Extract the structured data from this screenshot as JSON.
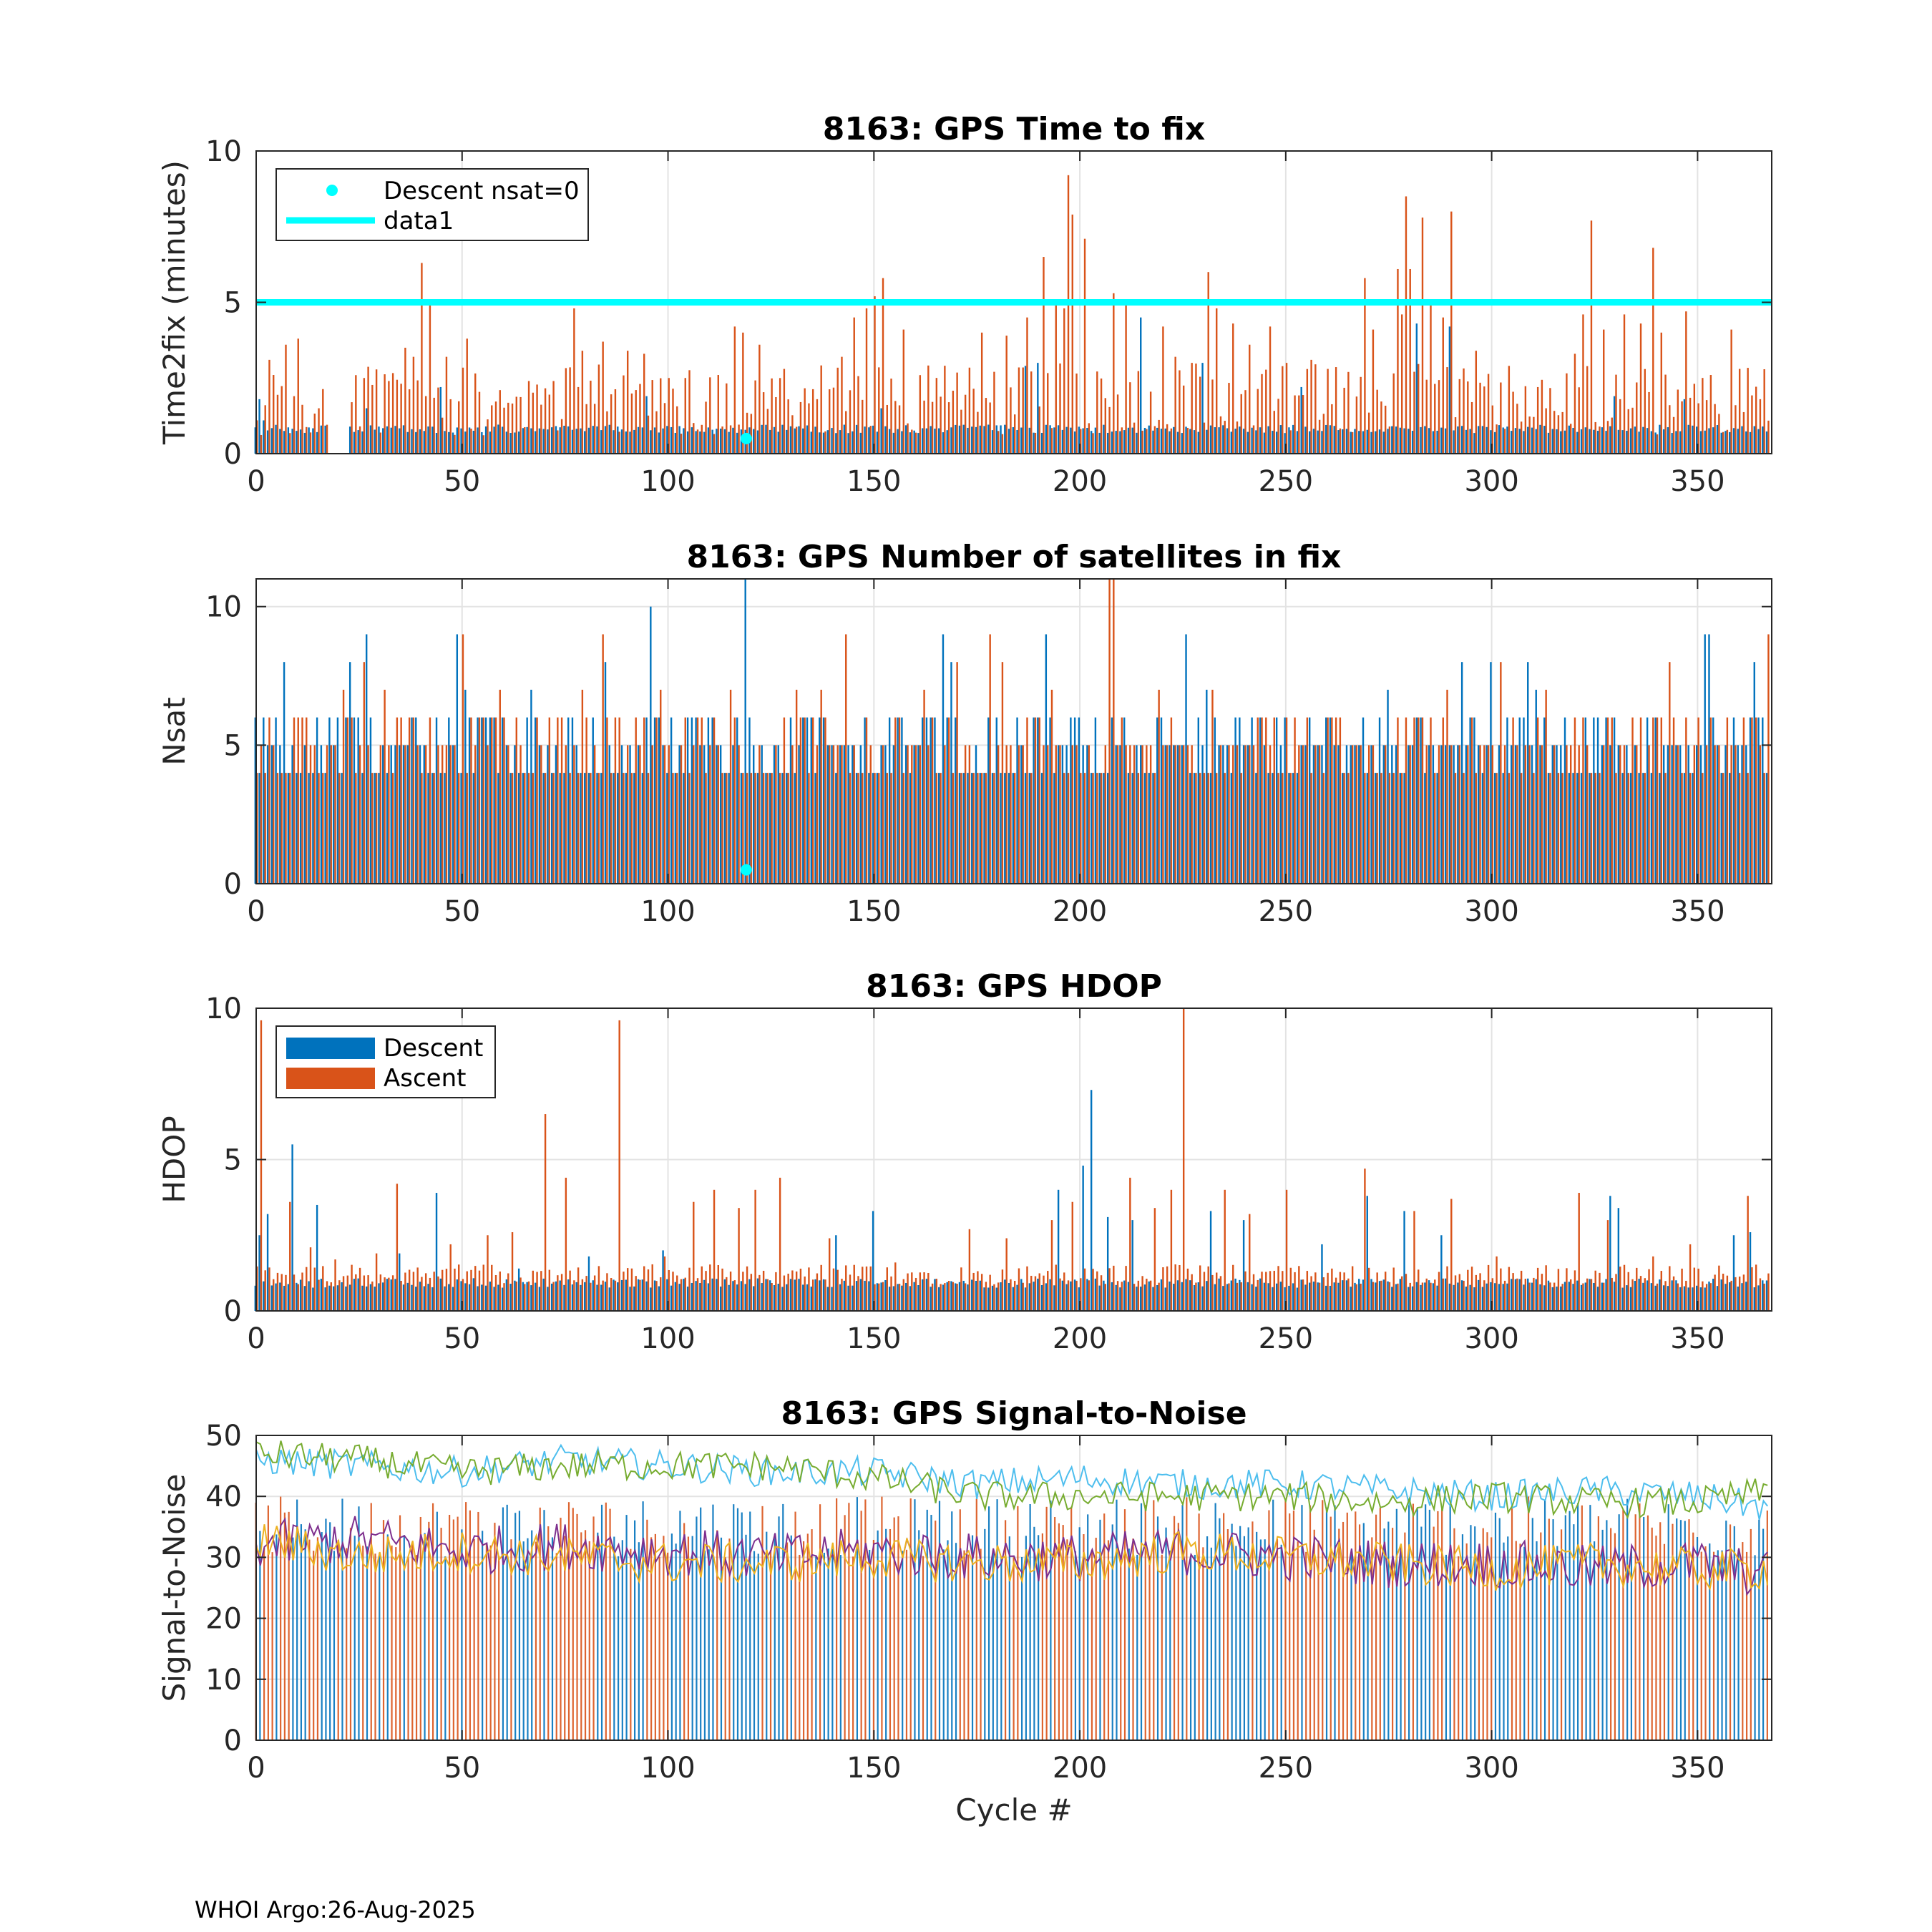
{
  "footer": "WHOI Argo:26-Aug-2025",
  "colors": {
    "descent": "#0072BD",
    "ascent": "#D95319",
    "marker": "#00FFFF",
    "snr": [
      "#4DBEEE",
      "#77AC30",
      "#7E2F8E",
      "#EDB120",
      "#0072BD",
      "#D95319"
    ]
  },
  "chart_data": [
    {
      "type": "bar",
      "title": "8163: GPS Time to fix",
      "xlabel": "",
      "ylabel": "Time2fix (minutes)",
      "xlim": [
        0,
        368
      ],
      "ylim": [
        0,
        10
      ],
      "xticks": [
        "0",
        "50",
        "100",
        "150",
        "200",
        "250",
        "300",
        "350"
      ],
      "yticks": [
        "0",
        "5",
        "10"
      ],
      "legend": {
        "placement": "top-left",
        "entries": [
          "Descent nsat=0",
          "data1"
        ]
      },
      "hline": {
        "name": "data1",
        "y": 5
      },
      "markers": [
        {
          "name": "Descent nsat=0",
          "x": 119,
          "y": 0.5
        }
      ],
      "descent_baseline": 0.8,
      "ascent_baseline": 1.5,
      "descent_peaks": [
        [
          1,
          1.8
        ],
        [
          2,
          1.1
        ],
        [
          27,
          1.5
        ],
        [
          45,
          2.2
        ],
        [
          95,
          1.9
        ],
        [
          152,
          1.5
        ],
        [
          187,
          2.9
        ],
        [
          190,
          3.0
        ],
        [
          215,
          4.5
        ],
        [
          230,
          3.0
        ],
        [
          254,
          2.2
        ],
        [
          282,
          4.3
        ],
        [
          290,
          4.2
        ],
        [
          330,
          1.9
        ],
        [
          347,
          1.8
        ]
      ],
      "ascent_peaks": [
        [
          2,
          1.6
        ],
        [
          3,
          3.1
        ],
        [
          4,
          2.6
        ],
        [
          7,
          3.6
        ],
        [
          9,
          1.9
        ],
        [
          10,
          3.8
        ],
        [
          15,
          1.5
        ],
        [
          23,
          1.7
        ],
        [
          26,
          2.5
        ],
        [
          32,
          2.4
        ],
        [
          36,
          3.5
        ],
        [
          38,
          3.2
        ],
        [
          40,
          6.3
        ],
        [
          42,
          4.9
        ],
        [
          46,
          3.2
        ],
        [
          51,
          3.8
        ],
        [
          59,
          2.1
        ],
        [
          66,
          2.4
        ],
        [
          72,
          2.4
        ],
        [
          77,
          4.8
        ],
        [
          79,
          3.4
        ],
        [
          84,
          3.7
        ],
        [
          90,
          3.4
        ],
        [
          94,
          3.3
        ],
        [
          100,
          2.5
        ],
        [
          104,
          2.5
        ],
        [
          112,
          2.6
        ],
        [
          116,
          4.2
        ],
        [
          118,
          4.0
        ],
        [
          122,
          3.6
        ],
        [
          128,
          2.8
        ],
        [
          136,
          1.8
        ],
        [
          142,
          3.2
        ],
        [
          145,
          4.5
        ],
        [
          148,
          4.8
        ],
        [
          150,
          5.2
        ],
        [
          152,
          5.8
        ],
        [
          157,
          4.1
        ],
        [
          168,
          1.7
        ],
        [
          176,
          4.0
        ],
        [
          182,
          3.9
        ],
        [
          187,
          4.5
        ],
        [
          191,
          6.5
        ],
        [
          194,
          5.0
        ],
        [
          196,
          4.8
        ],
        [
          197,
          9.2
        ],
        [
          198,
          7.9
        ],
        [
          201,
          7.1
        ],
        [
          208,
          5.3
        ],
        [
          211,
          4.9
        ],
        [
          220,
          4.2
        ],
        [
          223,
          3.2
        ],
        [
          227,
          3.0
        ],
        [
          231,
          6.0
        ],
        [
          233,
          4.8
        ],
        [
          237,
          4.3
        ],
        [
          241,
          3.6
        ],
        [
          246,
          4.2
        ],
        [
          250,
          3.0
        ],
        [
          256,
          3.1
        ],
        [
          260,
          2.8
        ],
        [
          265,
          2.7
        ],
        [
          269,
          5.8
        ],
        [
          271,
          4.1
        ],
        [
          277,
          6.1
        ],
        [
          278,
          4.6
        ],
        [
          279,
          8.5
        ],
        [
          280,
          6.1
        ],
        [
          283,
          7.8
        ],
        [
          285,
          5.0
        ],
        [
          288,
          4.5
        ],
        [
          290,
          8.0
        ],
        [
          296,
          3.4
        ],
        [
          304,
          2.9
        ],
        [
          311,
          2.2
        ],
        [
          320,
          3.3
        ],
        [
          322,
          4.6
        ],
        [
          324,
          7.7
        ],
        [
          327,
          4.1
        ],
        [
          332,
          4.6
        ],
        [
          336,
          4.3
        ],
        [
          339,
          6.8
        ],
        [
          341,
          4.0
        ],
        [
          347,
          4.7
        ],
        [
          353,
          2.6
        ],
        [
          358,
          4.1
        ],
        [
          365,
          1.8
        ]
      ]
    },
    {
      "type": "bar",
      "title": "8163: GPS Number of satellites in fix",
      "xlabel": "",
      "ylabel": "Nsat",
      "xlim": [
        0,
        368
      ],
      "ylim": [
        0,
        11
      ],
      "xticks": [
        "0",
        "50",
        "100",
        "150",
        "200",
        "250",
        "300",
        "350"
      ],
      "yticks": [
        "0",
        "5",
        "10"
      ],
      "markers": [
        {
          "name": "Descent nsat=0",
          "x": 119,
          "y": 0.5
        }
      ],
      "descent_baseline": 5,
      "ascent_baseline": 4,
      "descent_peaks": [
        [
          0,
          6
        ],
        [
          7,
          8
        ],
        [
          23,
          8
        ],
        [
          27,
          9
        ],
        [
          49,
          9
        ],
        [
          51,
          7
        ],
        [
          67,
          7
        ],
        [
          85,
          8
        ],
        [
          96,
          10
        ],
        [
          119,
          11
        ],
        [
          167,
          9
        ],
        [
          169,
          8
        ],
        [
          192,
          9
        ],
        [
          226,
          9
        ],
        [
          231,
          7
        ],
        [
          275,
          7
        ],
        [
          293,
          8
        ],
        [
          300,
          8
        ],
        [
          309,
          8
        ],
        [
          311,
          7
        ],
        [
          352,
          9
        ],
        [
          353,
          9
        ],
        [
          364,
          8
        ]
      ],
      "ascent_peaks": [
        [
          3,
          6
        ],
        [
          21,
          7
        ],
        [
          26,
          8
        ],
        [
          31,
          7
        ],
        [
          38,
          6
        ],
        [
          50,
          9
        ],
        [
          59,
          7
        ],
        [
          68,
          6
        ],
        [
          79,
          7
        ],
        [
          84,
          9
        ],
        [
          98,
          7
        ],
        [
          107,
          6
        ],
        [
          115,
          7
        ],
        [
          131,
          7
        ],
        [
          137,
          7
        ],
        [
          143,
          9
        ],
        [
          155,
          6
        ],
        [
          162,
          7
        ],
        [
          170,
          8
        ],
        [
          178,
          9
        ],
        [
          181,
          8
        ],
        [
          193,
          7
        ],
        [
          207,
          11
        ],
        [
          208,
          11
        ],
        [
          219,
          7
        ],
        [
          232,
          7
        ],
        [
          247,
          6
        ],
        [
          260,
          6
        ],
        [
          277,
          6
        ],
        [
          289,
          7
        ],
        [
          302,
          8
        ],
        [
          313,
          7
        ],
        [
          328,
          6
        ],
        [
          343,
          8
        ],
        [
          361,
          6
        ],
        [
          367,
          9
        ]
      ]
    },
    {
      "type": "bar",
      "title": "8163: GPS HDOP",
      "xlabel": "",
      "ylabel": "HDOP",
      "xlim": [
        0,
        368
      ],
      "ylim": [
        0,
        10
      ],
      "xticks": [
        "0",
        "50",
        "100",
        "150",
        "200",
        "250",
        "300",
        "350"
      ],
      "yticks": [
        "0",
        "5",
        "10"
      ],
      "legend": {
        "placement": "top-left",
        "entries": [
          "Descent",
          "Ascent"
        ]
      },
      "descent_baseline": 0.9,
      "ascent_baseline": 1.1,
      "descent_peaks": [
        [
          1,
          2.5
        ],
        [
          3,
          3.2
        ],
        [
          9,
          5.5
        ],
        [
          15,
          3.5
        ],
        [
          35,
          1.9
        ],
        [
          44,
          3.9
        ],
        [
          64,
          1.4
        ],
        [
          81,
          1.8
        ],
        [
          99,
          2.0
        ],
        [
          141,
          2.5
        ],
        [
          150,
          3.3
        ],
        [
          195,
          4.0
        ],
        [
          201,
          4.8
        ],
        [
          203,
          7.3
        ],
        [
          207,
          3.1
        ],
        [
          213,
          3.0
        ],
        [
          232,
          3.3
        ],
        [
          240,
          3.0
        ],
        [
          259,
          2.2
        ],
        [
          270,
          3.8
        ],
        [
          279,
          3.3
        ],
        [
          288,
          2.5
        ],
        [
          329,
          3.8
        ],
        [
          331,
          3.4
        ],
        [
          359,
          2.5
        ],
        [
          363,
          2.6
        ]
      ],
      "ascent_peaks": [
        [
          1,
          9.6
        ],
        [
          8,
          3.6
        ],
        [
          13,
          2.1
        ],
        [
          19,
          1.7
        ],
        [
          29,
          1.9
        ],
        [
          34,
          4.2
        ],
        [
          47,
          2.2
        ],
        [
          56,
          2.5
        ],
        [
          62,
          2.6
        ],
        [
          70,
          6.5
        ],
        [
          75,
          4.4
        ],
        [
          88,
          9.6
        ],
        [
          99,
          1.8
        ],
        [
          106,
          3.6
        ],
        [
          111,
          4.0
        ],
        [
          117,
          3.4
        ],
        [
          121,
          4.0
        ],
        [
          127,
          4.4
        ],
        [
          139,
          2.4
        ],
        [
          155,
          1.6
        ],
        [
          173,
          2.7
        ],
        [
          182,
          2.4
        ],
        [
          193,
          3.0
        ],
        [
          198,
          3.6
        ],
        [
          212,
          4.4
        ],
        [
          218,
          3.4
        ],
        [
          222,
          4.0
        ],
        [
          225,
          10.0
        ],
        [
          235,
          4.0
        ],
        [
          241,
          3.2
        ],
        [
          250,
          4.0
        ],
        [
          269,
          4.7
        ],
        [
          281,
          3.3
        ],
        [
          290,
          3.7
        ],
        [
          301,
          1.8
        ],
        [
          321,
          3.9
        ],
        [
          328,
          3.0
        ],
        [
          339,
          1.8
        ],
        [
          348,
          2.2
        ],
        [
          362,
          3.8
        ]
      ]
    },
    {
      "type": "bar",
      "title": "8163: GPS Signal-to-Noise",
      "xlabel": "Cycle #",
      "ylabel": "Signal-to-Noise",
      "xlim": [
        0,
        368
      ],
      "ylim": [
        0,
        50
      ],
      "xticks": [
        "0",
        "50",
        "100",
        "150",
        "200",
        "250",
        "300",
        "350"
      ],
      "yticks": [
        "0",
        "10",
        "20",
        "30",
        "40",
        "50"
      ],
      "bar_baseline": 30,
      "bar_peak": 40,
      "series": [
        {
          "name": "snr-top-cyan",
          "x": [
            0,
            25,
            50,
            75,
            100,
            125,
            150,
            175,
            200,
            225,
            250,
            275,
            300,
            325,
            350,
            368
          ],
          "values": [
            46,
            45,
            44,
            46,
            45,
            44,
            44,
            42,
            43,
            42,
            42,
            41,
            40,
            41,
            40,
            38
          ]
        },
        {
          "name": "snr-top-green",
          "x": [
            0,
            25,
            50,
            75,
            100,
            125,
            150,
            175,
            200,
            225,
            250,
            275,
            300,
            325,
            350,
            368
          ],
          "values": [
            47,
            46,
            44,
            45,
            45,
            45,
            43,
            40,
            40,
            40,
            40,
            39,
            40,
            39,
            39,
            41
          ]
        },
        {
          "name": "snr-purple",
          "x": [
            0,
            25,
            50,
            75,
            100,
            125,
            150,
            175,
            200,
            225,
            250,
            275,
            300,
            325,
            350,
            368
          ],
          "values": [
            32,
            33,
            31,
            32,
            31,
            30,
            31,
            30,
            30,
            31,
            30,
            29,
            29,
            28,
            29,
            27
          ]
        },
        {
          "name": "snr-yellow",
          "x": [
            0,
            25,
            50,
            75,
            100,
            125,
            150,
            175,
            200,
            225,
            250,
            275,
            300,
            325,
            350,
            368
          ],
          "values": [
            33,
            30,
            31,
            30,
            29,
            29,
            30,
            29,
            29,
            31,
            30,
            29,
            28,
            29,
            28,
            28
          ]
        }
      ]
    }
  ]
}
